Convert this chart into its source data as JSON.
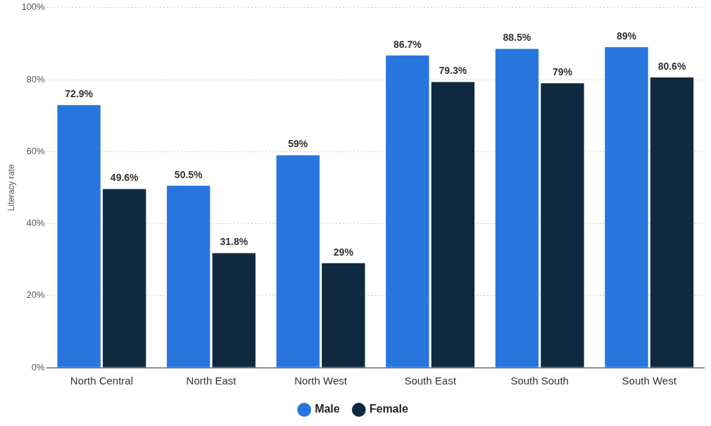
{
  "chart_data": {
    "type": "bar",
    "ylabel": "Literacy rate",
    "categories": [
      "North Central",
      "North East",
      "North West",
      "South East",
      "South South",
      "South West"
    ],
    "series": [
      {
        "name": "Male",
        "color": "#2876dd",
        "values": [
          72.9,
          50.5,
          59,
          86.7,
          88.5,
          89
        ],
        "value_labels": [
          "72.9%",
          "50.5%",
          "59%",
          "86.7%",
          "88.5%",
          "89%"
        ]
      },
      {
        "name": "Female",
        "color": "#0f2a40",
        "values": [
          49.6,
          31.8,
          29,
          79.3,
          79,
          80.6
        ],
        "value_labels": [
          "49.6%",
          "31.8%",
          "29%",
          "79.3%",
          "79%",
          "80.6%"
        ]
      }
    ],
    "ylim": [
      0,
      100
    ],
    "yticks": [
      {
        "value": 0,
        "label": "0%"
      },
      {
        "value": 20,
        "label": "20%"
      },
      {
        "value": 40,
        "label": "40%"
      },
      {
        "value": 60,
        "label": "60%"
      },
      {
        "value": 80,
        "label": "80%"
      },
      {
        "value": 100,
        "label": "100%"
      }
    ],
    "grid": "y",
    "legend": "bottom"
  }
}
